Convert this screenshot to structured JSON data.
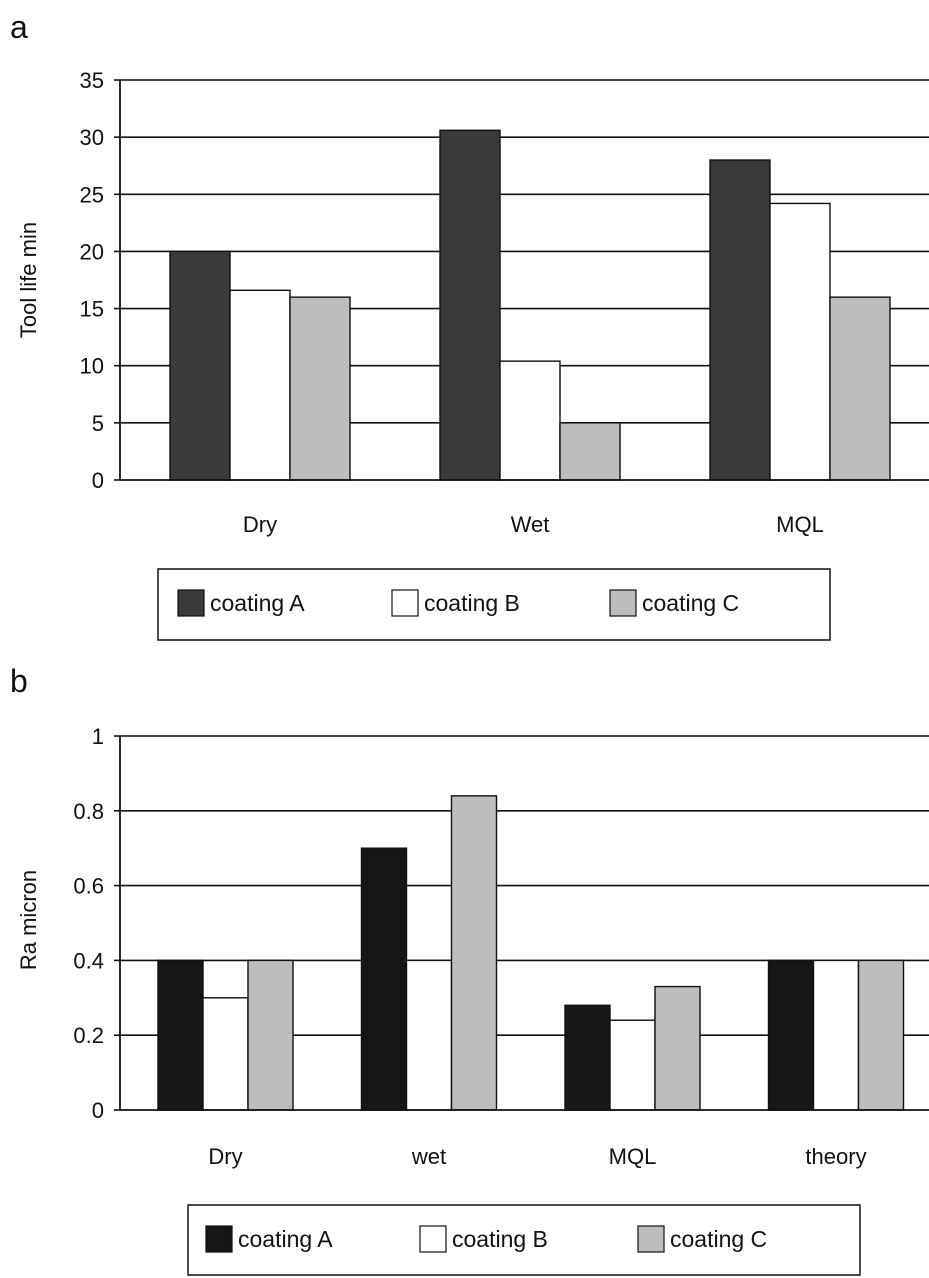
{
  "chart_data": [
    {
      "panel": "a",
      "type": "bar",
      "categories": [
        "Dry",
        "Wet",
        "MQL"
      ],
      "series": [
        {
          "name": "coating A",
          "values": [
            20,
            30.6,
            28
          ],
          "color": "#3a3a3a"
        },
        {
          "name": "coating B",
          "values": [
            16.6,
            10.4,
            24.2
          ],
          "color": "#ffffff"
        },
        {
          "name": "coating C",
          "values": [
            16,
            5,
            16
          ],
          "color": "#bdbdbd"
        }
      ],
      "ylabel": "Tool life min",
      "xlabel": "",
      "ylim": [
        0,
        35
      ],
      "yticks": [
        "0",
        "5",
        "10",
        "15",
        "20",
        "25",
        "30",
        "35"
      ],
      "ytick_values": [
        0,
        5,
        10,
        15,
        20,
        25,
        30,
        35
      ],
      "grid": true,
      "legend": "bottom"
    },
    {
      "panel": "b",
      "type": "bar",
      "categories": [
        "Dry",
        "wet",
        "MQL",
        "theory"
      ],
      "series": [
        {
          "name": "coating A",
          "values": [
            0.4,
            0.7,
            0.28,
            0.4
          ],
          "color": "#161616"
        },
        {
          "name": "coating B",
          "values": [
            0.3,
            0.4,
            0.24,
            0.4
          ],
          "color": "#ffffff"
        },
        {
          "name": "coating C",
          "values": [
            0.4,
            0.84,
            0.33,
            0.4
          ],
          "color": "#bdbdbd"
        }
      ],
      "ylabel": "Ra micron",
      "xlabel": "",
      "ylim": [
        0,
        1
      ],
      "yticks": [
        "0",
        "0.2",
        "0.4",
        "0.6",
        "0.8",
        "1"
      ],
      "ytick_values": [
        0,
        0.2,
        0.4,
        0.6,
        0.8,
        1
      ],
      "grid": true,
      "legend": "bottom"
    }
  ]
}
